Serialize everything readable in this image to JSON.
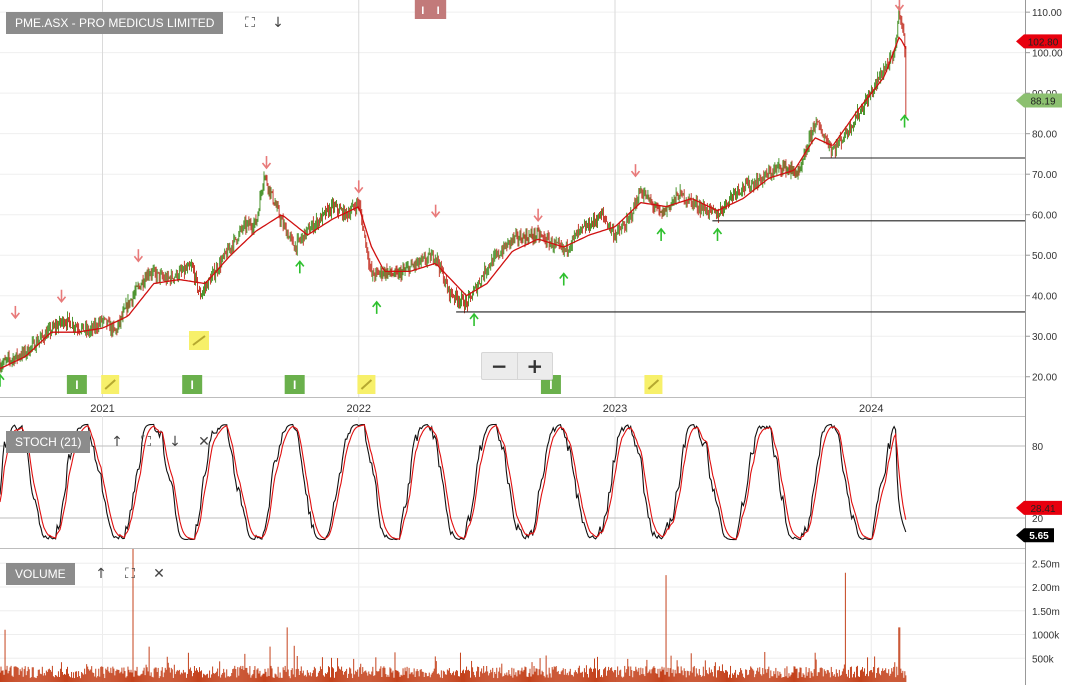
{
  "price_panel": {
    "title": "PME.ASX - PRO MEDICUS LIMITED"
  },
  "stoch_panel": {
    "title": "STOCH (21)"
  },
  "volume_panel": {
    "title": "VOLUME"
  },
  "zoom": {
    "minus": "−",
    "plus": "+"
  },
  "icons": {
    "fullscreen": "fullscreen-icon",
    "down": "arrow-down-icon",
    "up": "arrow-up-icon",
    "close": "close-icon",
    "signal": "signal-arrow-icon"
  },
  "colors": {
    "up_candle": "#3a8a1a",
    "down_candle": "#c0281a",
    "moving_average": "#d01010",
    "signal_up": "#2ec02e",
    "signal_down": "#e87a7a",
    "volume": "#c4421c",
    "stoch_k": "#111111",
    "stoch_d": "#e01010",
    "last_price_tag": "#e8000e",
    "ref_price_tag": "#8cc070"
  },
  "chart_data": [
    {
      "type": "line",
      "name": "price",
      "x_ticks": [
        "2021",
        "2022",
        "2023",
        "2024"
      ],
      "y_ticks": [
        "20.00",
        "30.00",
        "40.00",
        "50.00",
        "60.00",
        "70.00",
        "80.00",
        "90.00",
        "100.00",
        "110.00"
      ],
      "ylim": [
        15,
        113
      ],
      "price_path": [
        [
          2020.6,
          23
        ],
        [
          2020.7,
          26
        ],
        [
          2020.75,
          29
        ],
        [
          2020.85,
          34
        ],
        [
          2020.95,
          31
        ],
        [
          2021.0,
          34
        ],
        [
          2021.05,
          31
        ],
        [
          2021.1,
          38
        ],
        [
          2021.18,
          46
        ],
        [
          2021.25,
          44
        ],
        [
          2021.35,
          47
        ],
        [
          2021.38,
          40
        ],
        [
          2021.45,
          47
        ],
        [
          2021.5,
          52
        ],
        [
          2021.55,
          57
        ],
        [
          2021.6,
          58
        ],
        [
          2021.63,
          70
        ],
        [
          2021.7,
          58
        ],
        [
          2021.75,
          52
        ],
        [
          2021.8,
          56
        ],
        [
          2021.9,
          62
        ],
        [
          2021.95,
          60
        ],
        [
          2022.0,
          63
        ],
        [
          2022.05,
          45
        ],
        [
          2022.1,
          46
        ],
        [
          2022.15,
          45
        ],
        [
          2022.2,
          47
        ],
        [
          2022.3,
          50
        ],
        [
          2022.35,
          41
        ],
        [
          2022.42,
          38
        ],
        [
          2022.45,
          41
        ],
        [
          2022.5,
          47
        ],
        [
          2022.6,
          54
        ],
        [
          2022.7,
          55
        ],
        [
          2022.8,
          51
        ],
        [
          2022.85,
          55
        ],
        [
          2022.95,
          60
        ],
        [
          2023.0,
          55
        ],
        [
          2023.05,
          58
        ],
        [
          2023.1,
          66
        ],
        [
          2023.18,
          60
        ],
        [
          2023.25,
          65
        ],
        [
          2023.33,
          62
        ],
        [
          2023.4,
          60
        ],
        [
          2023.47,
          66
        ],
        [
          2023.55,
          68
        ],
        [
          2023.65,
          72
        ],
        [
          2023.72,
          70
        ],
        [
          2023.78,
          83
        ],
        [
          2023.85,
          76
        ],
        [
          2023.9,
          80
        ],
        [
          2024.0,
          90
        ],
        [
          2024.05,
          96
        ],
        [
          2024.09,
          99
        ],
        [
          2024.11,
          111
        ],
        [
          2024.13,
          103
        ],
        [
          2024.135,
          86
        ]
      ],
      "moving_average": [
        [
          2020.6,
          22
        ],
        [
          2020.7,
          25
        ],
        [
          2020.8,
          31
        ],
        [
          2020.9,
          31
        ],
        [
          2021.0,
          32
        ],
        [
          2021.1,
          35
        ],
        [
          2021.2,
          43
        ],
        [
          2021.3,
          44
        ],
        [
          2021.4,
          43
        ],
        [
          2021.5,
          50
        ],
        [
          2021.6,
          56
        ],
        [
          2021.7,
          60
        ],
        [
          2021.8,
          55
        ],
        [
          2021.9,
          59
        ],
        [
          2022.0,
          62
        ],
        [
          2022.05,
          52
        ],
        [
          2022.1,
          46
        ],
        [
          2022.2,
          46
        ],
        [
          2022.3,
          48
        ],
        [
          2022.42,
          40
        ],
        [
          2022.5,
          43
        ],
        [
          2022.6,
          51
        ],
        [
          2022.7,
          54
        ],
        [
          2022.8,
          52
        ],
        [
          2022.9,
          55
        ],
        [
          2023.0,
          57
        ],
        [
          2023.1,
          63
        ],
        [
          2023.2,
          62
        ],
        [
          2023.3,
          64
        ],
        [
          2023.4,
          61
        ],
        [
          2023.5,
          64
        ],
        [
          2023.6,
          69
        ],
        [
          2023.7,
          71
        ],
        [
          2023.78,
          79
        ],
        [
          2023.85,
          77
        ],
        [
          2023.95,
          86
        ],
        [
          2024.05,
          94
        ],
        [
          2024.11,
          104
        ],
        [
          2024.135,
          101
        ]
      ],
      "support_lines": [
        {
          "x_start": 2022.38,
          "value": 36
        },
        {
          "x_start": 2023.38,
          "value": 58.5
        },
        {
          "x_start": 2023.8,
          "value": 74
        }
      ],
      "signal_up": [
        [
          2020.6,
          19
        ],
        [
          2021.77,
          47
        ],
        [
          2022.07,
          37
        ],
        [
          2022.45,
          34
        ],
        [
          2022.8,
          44
        ],
        [
          2023.18,
          55
        ],
        [
          2023.4,
          55
        ],
        [
          2024.13,
          83
        ]
      ],
      "signal_down": [
        [
          2020.66,
          36
        ],
        [
          2020.84,
          40
        ],
        [
          2021.14,
          50
        ],
        [
          2021.64,
          73
        ],
        [
          2022.0,
          67
        ],
        [
          2022.3,
          61
        ],
        [
          2022.7,
          60
        ],
        [
          2023.08,
          71
        ],
        [
          2024.11,
          112
        ]
      ],
      "last_price": "102.80",
      "reference_price": "88.19",
      "event_markers": [
        {
          "x": 2020.9,
          "label": "I"
        },
        {
          "x": 2021.35,
          "label": "I"
        },
        {
          "x": 2021.75,
          "label": "I"
        },
        {
          "x": 2022.75,
          "label": "I"
        }
      ],
      "note_markers": [
        2021.03,
        2022.03,
        2023.15
      ],
      "upper_markers": [
        {
          "x": 2022.25,
          "label": "I"
        },
        {
          "x": 2022.31,
          "label": "I"
        }
      ]
    },
    {
      "type": "line",
      "name": "stochastic",
      "y_ticks": [
        "20",
        "80"
      ],
      "ylim": [
        -5,
        105
      ],
      "last_values": [
        "28.41",
        "5.65"
      ]
    },
    {
      "type": "bar",
      "name": "volume",
      "y_ticks": [
        "500k",
        "1000k",
        "1.50m",
        "2.00m",
        "2.50m"
      ],
      "ylim": [
        0,
        2800000
      ],
      "spikes": [
        [
          2021.12,
          2800000
        ],
        [
          2023.2,
          2250000
        ],
        [
          2023.9,
          2300000
        ],
        [
          2021.72,
          1150000
        ],
        [
          2020.62,
          1100000
        ],
        [
          2024.11,
          1150000
        ]
      ]
    }
  ]
}
